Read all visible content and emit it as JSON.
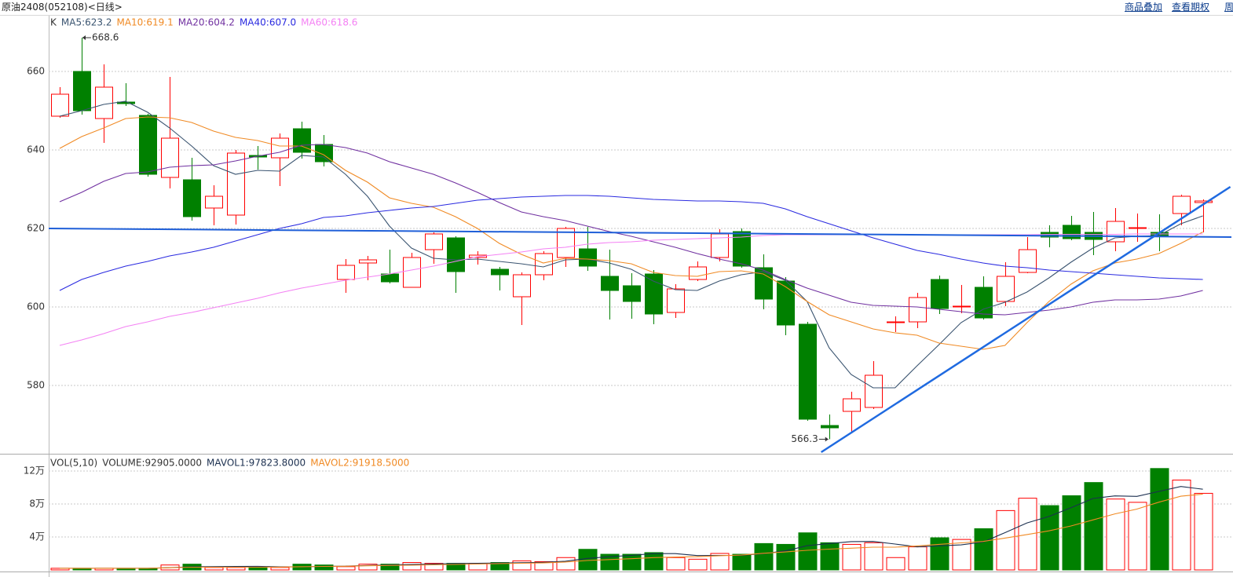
{
  "header": {
    "title": "原油2408(052108)<日线>",
    "links": [
      "商品叠加",
      "查看期权",
      "周"
    ]
  },
  "chart_data": [
    {
      "type": "candlestick",
      "label": "K",
      "up_color": "#ff0000",
      "down_color": "#008000",
      "xlim": [
        -0.5,
        53.3
      ],
      "ylim": [
        562.6,
        674.2
      ],
      "yticks": [
        580,
        600,
        620,
        640,
        660
      ],
      "grid": true,
      "open": [
        648.6,
        660,
        648,
        652.2,
        648.8,
        633,
        632.4,
        625.2,
        623.4,
        638.6,
        638,
        645.4,
        641.4,
        607,
        611.2,
        608.4,
        605,
        614.6,
        617.6,
        612.6,
        609.6,
        602.6,
        608.2,
        612.6,
        614.8,
        607.8,
        605.4,
        608.4,
        598.6,
        607,
        612.6,
        619.2,
        610,
        606.6,
        595.6,
        569.8,
        573.4,
        574.4,
        596,
        596.2,
        607,
        600,
        605,
        601.4,
        608.8,
        619,
        620.8,
        619,
        616.6,
        620,
        619,
        623.8,
        626.6
      ],
      "high": [
        656,
        668.6,
        661.8,
        657,
        649.2,
        658.6,
        638,
        631,
        640,
        641,
        644.2,
        647.2,
        643.8,
        612.2,
        613,
        614.6,
        613.8,
        619,
        618,
        614.2,
        610.2,
        608.8,
        614.2,
        620.4,
        620.4,
        614.6,
        608.6,
        609.4,
        605.8,
        611.6,
        619.8,
        620,
        613.4,
        607.6,
        596.2,
        572.6,
        578.4,
        586.2,
        597.6,
        603.6,
        608,
        605.6,
        607.8,
        611.4,
        617.8,
        620.8,
        623.2,
        624.2,
        625.2,
        623.8,
        623.6,
        628.6,
        627.4
      ],
      "low": [
        648.2,
        649,
        641.8,
        651.2,
        633.2,
        630.2,
        622,
        620.8,
        621,
        635,
        630.8,
        637.8,
        635.8,
        603.6,
        606.8,
        606,
        605,
        611,
        603.6,
        610.8,
        604.2,
        595.4,
        606.8,
        610.2,
        609.2,
        596.8,
        597,
        595.6,
        597.2,
        606.6,
        611.6,
        610,
        599.4,
        592.8,
        571,
        566.3,
        568.2,
        574,
        593.6,
        594.6,
        598.2,
        598.4,
        596.8,
        600.2,
        608.6,
        615.2,
        617,
        613.2,
        614.2,
        616.6,
        614.2,
        620.8,
        619
      ],
      "close": [
        654.2,
        650,
        656,
        651.8,
        633.8,
        643,
        623,
        628.2,
        639.2,
        638.2,
        643,
        639.4,
        637,
        610.6,
        612,
        606.4,
        612.6,
        618.6,
        609,
        613.2,
        608.2,
        608.2,
        613.6,
        620,
        610.4,
        604.2,
        601.4,
        598.2,
        604.6,
        610.2,
        618.6,
        610.4,
        602,
        595.4,
        571.4,
        569.2,
        576.6,
        582.6,
        596.2,
        602.4,
        599.6,
        600.2,
        597.2,
        607.8,
        614.6,
        617.8,
        617.4,
        617.2,
        621.8,
        620.2,
        618.2,
        628.2,
        627
      ],
      "series": [
        {
          "name": "MA5:623.2",
          "color": "#3a5470",
          "values": [
            648.6,
            650,
            651.6,
            652.4,
            649.6,
            645.6,
            641,
            636,
            633.8,
            634.8,
            634.6,
            638.6,
            638.2,
            633.8,
            628.2,
            620.6,
            615,
            612.4,
            612,
            612.2,
            611.6,
            611,
            610.2,
            612,
            612.2,
            611.2,
            609.6,
            606.6,
            604.4,
            604.2,
            606.6,
            608.2,
            609,
            606.8,
            601.4,
            589.6,
            582.8,
            579.4,
            579.4,
            585,
            590.4,
            596,
            599.4,
            601.2,
            603.8,
            607.4,
            611.4,
            615,
            617.6,
            618,
            618.2,
            621.2,
            623.2
          ]
        },
        {
          "name": "MA10:619.1",
          "color": "#f08a24",
          "values": [
            640.4,
            643.4,
            645.6,
            648,
            648.4,
            648.2,
            647,
            644.8,
            643.2,
            642.4,
            641,
            641,
            638.8,
            634.8,
            631.8,
            627.8,
            626.4,
            625.4,
            623,
            620,
            616.2,
            613.4,
            611.2,
            612.4,
            612.2,
            611.8,
            611,
            608.8,
            608,
            607.8,
            609,
            609.2,
            608.4,
            605.2,
            601.4,
            598,
            596.2,
            594.4,
            593.4,
            592.8,
            590.8,
            590,
            589.2,
            590.2,
            596,
            601.4,
            605.8,
            609.2,
            611.2,
            612.2,
            613.6,
            616.2,
            619.1
          ]
        },
        {
          "name": "MA20:604.2",
          "color": "#7030a0",
          "values": [
            626.8,
            629.2,
            632,
            634,
            634.4,
            635.6,
            636,
            636.2,
            637.2,
            638.4,
            639.4,
            641.2,
            641.4,
            640.6,
            639.2,
            637,
            635.4,
            633.8,
            631.6,
            629.2,
            626.6,
            624.2,
            623,
            622,
            620.6,
            619.2,
            618,
            616.6,
            615.2,
            613.6,
            612.2,
            611,
            609.4,
            607,
            604.8,
            603,
            601.2,
            600.4,
            600.2,
            600,
            599.4,
            598.8,
            598.2,
            598,
            598.6,
            599.2,
            600,
            601.2,
            601.8,
            601.8,
            602,
            602.8,
            604.2
          ]
        },
        {
          "name": "MA40:607.0",
          "color": "#2a2ae0",
          "values": [
            604.2,
            607,
            608.8,
            610.4,
            611.6,
            613,
            614,
            615.2,
            616.8,
            618.4,
            620,
            621.2,
            622.8,
            623.2,
            624,
            624.6,
            625.2,
            625.6,
            626.4,
            627.2,
            627.6,
            628,
            628.2,
            628.4,
            628.4,
            628.2,
            627.8,
            627.4,
            627.2,
            627,
            627,
            626.8,
            626.4,
            625,
            623,
            621.2,
            619.4,
            617.6,
            616,
            614.4,
            613.4,
            612.2,
            611.2,
            610.4,
            610,
            609.4,
            609,
            608.6,
            608.2,
            607.8,
            607.4,
            607.2,
            607
          ]
        },
        {
          "name": "MA60:618.6",
          "color": "#f482f4",
          "values": [
            590.2,
            591.6,
            593.2,
            595,
            596.2,
            597.6,
            598.6,
            599.8,
            601,
            602.2,
            603.6,
            604.8,
            605.8,
            606.8,
            607.6,
            608.4,
            609.4,
            610.4,
            611.6,
            612.8,
            613.4,
            614,
            614.8,
            615.2,
            616,
            616.4,
            616.6,
            617,
            617.2,
            617.4,
            617.6,
            617.8,
            618.2,
            618.4,
            618.4,
            618.4,
            618.4,
            618.4,
            618.4,
            618.4,
            618.4,
            618.4,
            618.4,
            618.4,
            618.4,
            618.5,
            618.5,
            618.5,
            618.5,
            618.6,
            618.6,
            618.6,
            618.6
          ]
        }
      ],
      "drawn_lines": [
        {
          "color": "#1f5fd8",
          "x": [
            -0.5,
            53.3
          ],
          "values": [
            620,
            617.8
          ]
        },
        {
          "color": "#1f6ae0",
          "x": [
            34.64,
            53.25
          ],
          "values": [
            563,
            630.6
          ]
        }
      ],
      "annotations": [
        "668.6",
        "566.3"
      ]
    },
    {
      "type": "bar",
      "label": "VOL(5,10)",
      "xlim": [
        -0.5,
        53.3
      ],
      "ylim": [
        0,
        139000
      ],
      "yticks": [
        {
          "value": 40000,
          "label": "4万"
        },
        {
          "value": 80000,
          "label": "8万"
        },
        {
          "value": 120000,
          "label": "12万"
        }
      ],
      "grid": true,
      "series": [
        {
          "name": "VOLUME:92905.0000",
          "color": "#333333",
          "values": [
            2000,
            2000,
            2000,
            2000,
            2000,
            6000,
            7000,
            3000,
            3000,
            3000,
            3000,
            7000,
            6000,
            4000,
            7000,
            7000,
            9000,
            8000,
            8000,
            8000,
            9000,
            11000,
            10000,
            15000,
            25000,
            19000,
            19000,
            21000,
            15000,
            13000,
            20000,
            19000,
            32000,
            31000,
            45000,
            33000,
            31000,
            33000,
            15000,
            28000,
            39000,
            37000,
            50000,
            72000,
            87000,
            78000,
            90000,
            106000,
            86000,
            82000,
            123000,
            109000,
            92905
          ]
        },
        {
          "name": "MAVOL1:97823.8000",
          "color": "#1c3050",
          "values": [
            2000,
            2000,
            2000,
            2000,
            2000,
            2800,
            3800,
            4000,
            4200,
            4400,
            3800,
            3800,
            4400,
            4600,
            5400,
            6200,
            6600,
            7000,
            7800,
            8000,
            8400,
            8800,
            9200,
            10600,
            14000,
            16000,
            17600,
            19800,
            19800,
            17400,
            17600,
            17600,
            19800,
            23000,
            29400,
            32000,
            34400,
            34600,
            31400,
            28000,
            29200,
            30400,
            33800,
            45200,
            57000,
            64800,
            75400,
            86600,
            89800,
            89200,
            95200,
            101200,
            97823.8
          ]
        },
        {
          "name": "MAVOL2:91918.5000",
          "color": "#f08a24",
          "values": [
            2000,
            2000,
            2000,
            2000,
            2000,
            2700,
            3300,
            3300,
            3300,
            3300,
            3400,
            3900,
            4300,
            4500,
            5000,
            5500,
            5700,
            6200,
            6700,
            7100,
            7700,
            8100,
            8500,
            9600,
            11400,
            12600,
            13600,
            14900,
            15600,
            16100,
            17200,
            18000,
            20200,
            21800,
            23800,
            25200,
            26400,
            27600,
            27600,
            29100,
            31000,
            32800,
            34600,
            38700,
            42900,
            47400,
            53300,
            60600,
            68000,
            73800,
            82200,
            89400,
            91918.5
          ]
        }
      ]
    }
  ]
}
